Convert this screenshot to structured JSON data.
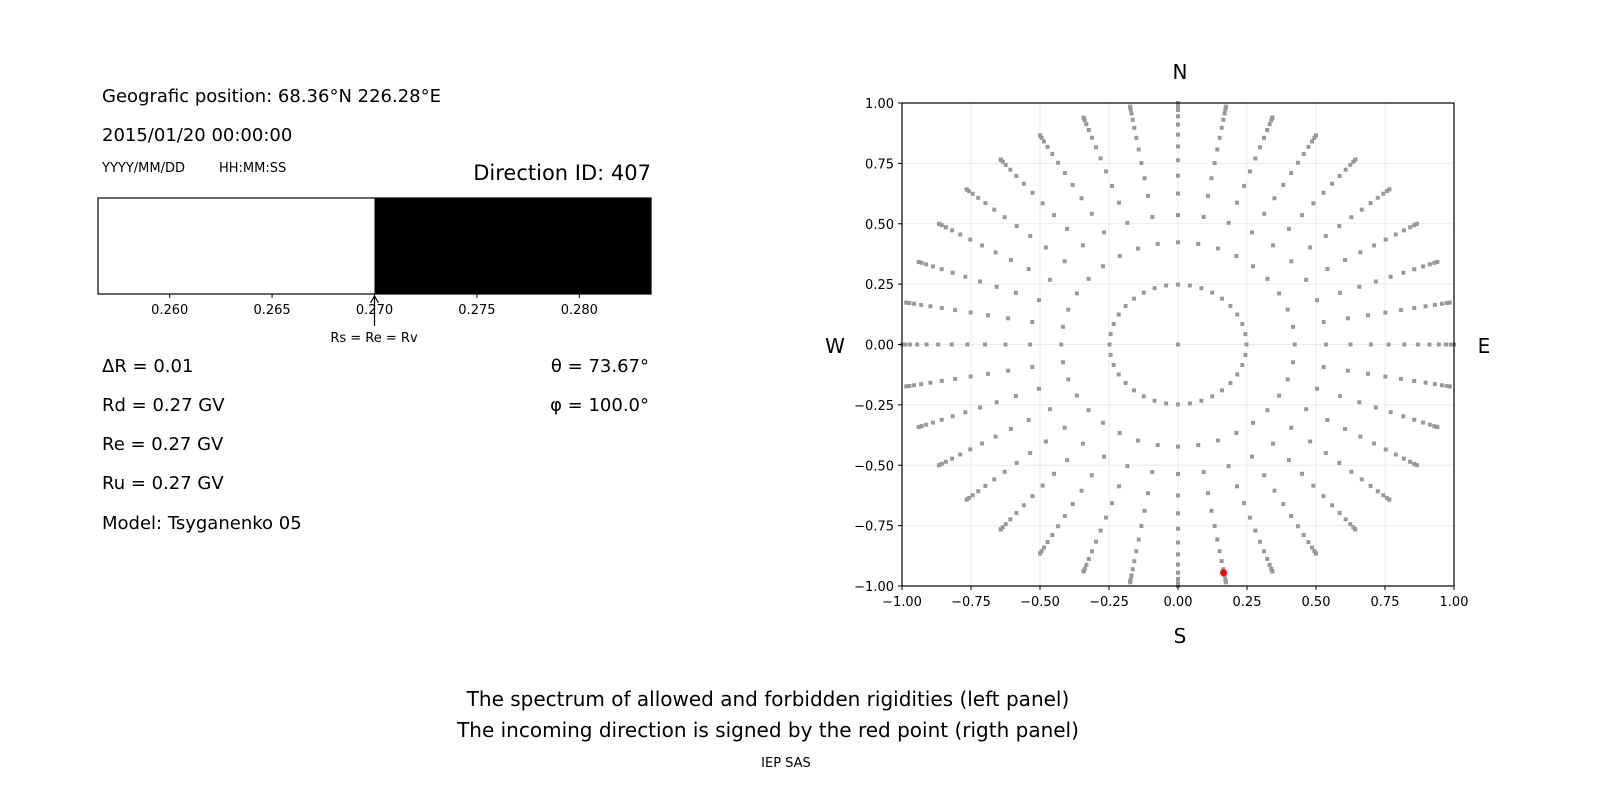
{
  "left_panel": {
    "position_text": "Geografic position: 68.36°N 226.28°E",
    "datetime": "2015/01/20 00:00:00",
    "date_format": "YYYY/MM/DD",
    "time_format": "HH:MM:SS",
    "direction_id": "Direction ID: 407",
    "delta_r": "ΔR = 0.01",
    "rd": "Rd = 0.27 GV",
    "re": "Re = 0.27 GV",
    "ru": "Ru = 0.27 GV",
    "model": "Model: Tsyganenko 05",
    "theta": "θ = 73.67°",
    "phi": "φ = 100.0°",
    "arrow_label": "Rs = Re = Rv"
  },
  "footer": {
    "line1": "The spectrum of allowed and forbidden rigidities (left panel)",
    "line2": "The incoming direction is signed by the red point (rigth panel)",
    "credit": "IEP SAS"
  },
  "chart_data": [
    {
      "type": "bar",
      "xlim": [
        0.2565,
        0.2835
      ],
      "xticks": [
        "0.260",
        "0.265",
        "0.270",
        "0.275",
        "0.280"
      ],
      "segments": [
        {
          "from": 0.2565,
          "to": 0.27,
          "color": "#ffffff",
          "meaning": "allowed"
        },
        {
          "from": 0.27,
          "to": 0.2835,
          "color": "#000000",
          "meaning": "forbidden"
        }
      ],
      "marker_value": 0.27
    },
    {
      "type": "scatter",
      "xlim": [
        -1,
        1
      ],
      "ylim": [
        -1,
        1
      ],
      "xticks": [
        "−1.00",
        "−0.75",
        "−0.50",
        "−0.25",
        "0.00",
        "0.25",
        "0.50",
        "0.75",
        "1.00"
      ],
      "yticks": [
        "1.00",
        "0.75",
        "0.50",
        "0.25",
        "0.00",
        "−0.25",
        "−0.50",
        "−0.75",
        "−1.00"
      ],
      "grid": true,
      "compass": {
        "top": "N",
        "bottom": "S",
        "left": "W",
        "right": "E"
      },
      "grid_points": {
        "azimuths_deg": [
          0,
          10,
          20,
          30,
          40,
          50,
          60,
          70,
          80,
          90,
          100,
          110,
          120,
          130,
          140,
          150,
          160,
          170,
          180,
          190,
          200,
          210,
          220,
          230,
          240,
          250,
          260,
          270,
          280,
          290,
          300,
          310,
          320,
          330,
          340,
          350
        ],
        "radii": [
          0.248,
          0.423,
          0.536,
          0.625,
          0.699,
          0.763,
          0.82,
          0.869,
          0.911,
          0.945,
          0.971,
          0.988,
          0.998,
          1.0
        ],
        "center": true,
        "color": "#999999"
      },
      "highlight_point": {
        "x": 0.165,
        "y": -0.945,
        "color": "#ff0000"
      }
    }
  ]
}
